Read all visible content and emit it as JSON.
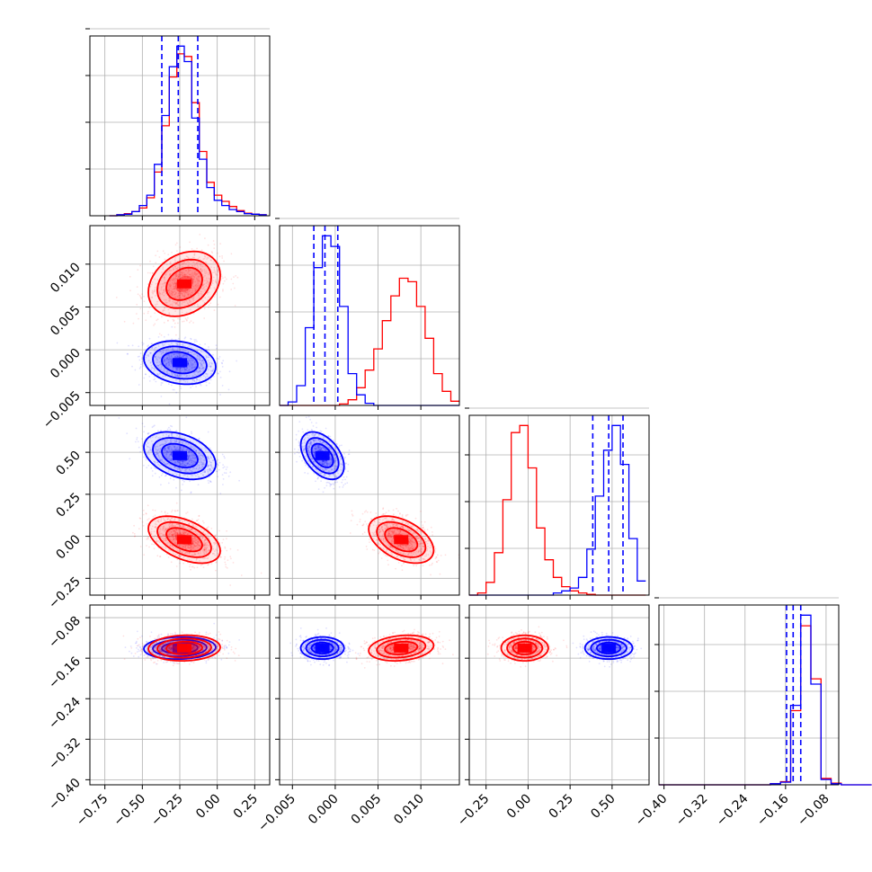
{
  "chart_data": {
    "type": "corner",
    "parameters": 4,
    "series": [
      {
        "name": "",
        "color": "#0000ff",
        "cov": [
          [
            0.0144,
            -3e-05,
            -0.003,
            0.0001
          ],
          [
            -3e-05,
            1.6e-06,
            -4e-05,
            0
          ],
          [
            -0.003,
            -4e-05,
            0.005,
            0
          ],
          [
            0.0001,
            0,
            0,
            0.00012
          ]
        ],
        "mean": [
          -0.25,
          -0.0015,
          0.48,
          -0.14
        ]
      },
      {
        "name": "",
        "color": "#ff0000",
        "cov": [
          [
            0.0144,
            6e-05,
            -0.004,
            0.0001
          ],
          [
            6e-05,
            3.6e-06,
            -6e-05,
            5e-06
          ],
          [
            -0.004,
            -6e-05,
            0.0049,
            0
          ],
          [
            0.0001,
            5e-06,
            0,
            0.00016
          ]
        ],
        "mean": [
          -0.22,
          0.0077,
          -0.02,
          -0.14
        ]
      }
    ],
    "hist": [
      {
        "bins": [
          -0.72,
          -0.67,
          -0.62,
          -0.57,
          -0.52,
          -0.47,
          -0.42,
          -0.37,
          -0.32,
          -0.27,
          -0.22,
          -0.17,
          -0.12,
          -0.07,
          -0.02,
          0.03,
          0.08,
          0.13,
          0.18,
          0.23,
          0.28,
          0.33
        ],
        "blue": [
          0,
          2,
          3,
          8,
          20,
          40,
          100,
          195,
          290,
          330,
          300,
          190,
          110,
          55,
          30,
          20,
          12,
          8,
          4,
          3,
          2
        ],
        "red": [
          0,
          2,
          4,
          8,
          15,
          35,
          85,
          175,
          270,
          315,
          310,
          220,
          125,
          65,
          40,
          28,
          18,
          10,
          5,
          3,
          2
        ]
      },
      {
        "bins": [
          -0.0065,
          -0.0055,
          -0.0045,
          -0.0035,
          -0.0025,
          -0.0015,
          -0.0005,
          0.0005,
          0.0015,
          0.0025,
          0.0035,
          0.0045,
          0.0055,
          0.0065,
          0.0075,
          0.0085,
          0.0095,
          0.0105,
          0.0115,
          0.0125,
          0.0135,
          0.0145
        ],
        "blue": [
          0,
          5,
          28,
          110,
          195,
          240,
          225,
          140,
          45,
          15,
          3,
          0,
          0,
          0,
          0,
          0,
          0,
          0,
          0,
          0,
          0
        ],
        "red": [
          0,
          0,
          0,
          0,
          0,
          0,
          0,
          2,
          8,
          25,
          50,
          80,
          120,
          155,
          180,
          175,
          140,
          95,
          45,
          20,
          6
        ]
      },
      {
        "bins": [
          -0.35,
          -0.3,
          -0.25,
          -0.2,
          -0.15,
          -0.1,
          -0.05,
          0.0,
          0.05,
          0.1,
          0.15,
          0.2,
          0.25,
          0.3,
          0.35,
          0.4,
          0.45,
          0.5,
          0.55,
          0.6,
          0.65,
          0.7
        ],
        "blue": [
          0,
          0,
          0,
          0,
          0,
          0,
          0,
          0,
          0,
          0,
          3,
          6,
          10,
          25,
          65,
          140,
          205,
          240,
          185,
          80,
          20
        ],
        "red": [
          0,
          3,
          18,
          60,
          135,
          230,
          240,
          180,
          95,
          50,
          25,
          12,
          6,
          3,
          1,
          0,
          0,
          0,
          0,
          0,
          0
        ]
      },
      {
        "bins": [
          -0.41,
          -0.39,
          -0.37,
          -0.35,
          -0.33,
          -0.31,
          -0.29,
          -0.27,
          -0.25,
          -0.23,
          -0.21,
          -0.19,
          -0.17,
          -0.15,
          -0.13,
          -0.11,
          -0.09,
          -0.07,
          -0.05,
          -0.03,
          -0.01,
          0.01
        ],
        "blue": [
          0,
          0,
          0,
          0,
          0,
          0,
          0,
          0,
          0,
          0,
          0,
          2,
          5,
          150,
          320,
          190,
          10,
          2,
          0,
          0,
          0
        ],
        "red": [
          0,
          0,
          0,
          0,
          0,
          0,
          0,
          0,
          0,
          0,
          0,
          2,
          6,
          140,
          300,
          200,
          12,
          3,
          0,
          0,
          0
        ]
      }
    ],
    "quantiles": [
      [
        -0.37,
        -0.26,
        -0.13
      ],
      [
        -0.0025,
        -0.0012,
        0.0003
      ],
      [
        0.385,
        0.48,
        0.565
      ],
      [
        -0.158,
        -0.145,
        -0.13
      ]
    ],
    "ranges": [
      [
        -0.85,
        0.35
      ],
      [
        -0.0065,
        0.0145
      ],
      [
        -0.35,
        0.72
      ],
      [
        -0.41,
        -0.055
      ]
    ],
    "ticks": [
      [
        -0.75,
        -0.5,
        -0.25,
        0.0,
        0.25
      ],
      [
        -0.005,
        0.0,
        0.005,
        0.01
      ],
      [
        -0.25,
        0.0,
        0.25,
        0.5
      ],
      [
        -0.4,
        -0.32,
        -0.24,
        -0.16,
        -0.08
      ]
    ],
    "tick_labels": [
      [
        "−0.75",
        "−0.50",
        "−0.25",
        "0.00",
        "0.25"
      ],
      [
        "−0.005",
        "0.000",
        "0.005",
        "0.010"
      ],
      [
        "−0.25",
        "0.00",
        "0.25",
        "0.50"
      ],
      [
        "−0.40",
        "−0.32",
        "−0.24",
        "−0.16",
        "−0.08"
      ]
    ],
    "y_tick_labels_row": [
      null,
      [
        "−0.005",
        "0.000",
        "0.005",
        "0.010"
      ],
      [
        "−0.25",
        "0.00",
        "0.25",
        "0.50"
      ],
      [
        "−0.40",
        "−0.32",
        "−0.24",
        "−0.16",
        "−0.08"
      ]
    ],
    "grid": true
  }
}
